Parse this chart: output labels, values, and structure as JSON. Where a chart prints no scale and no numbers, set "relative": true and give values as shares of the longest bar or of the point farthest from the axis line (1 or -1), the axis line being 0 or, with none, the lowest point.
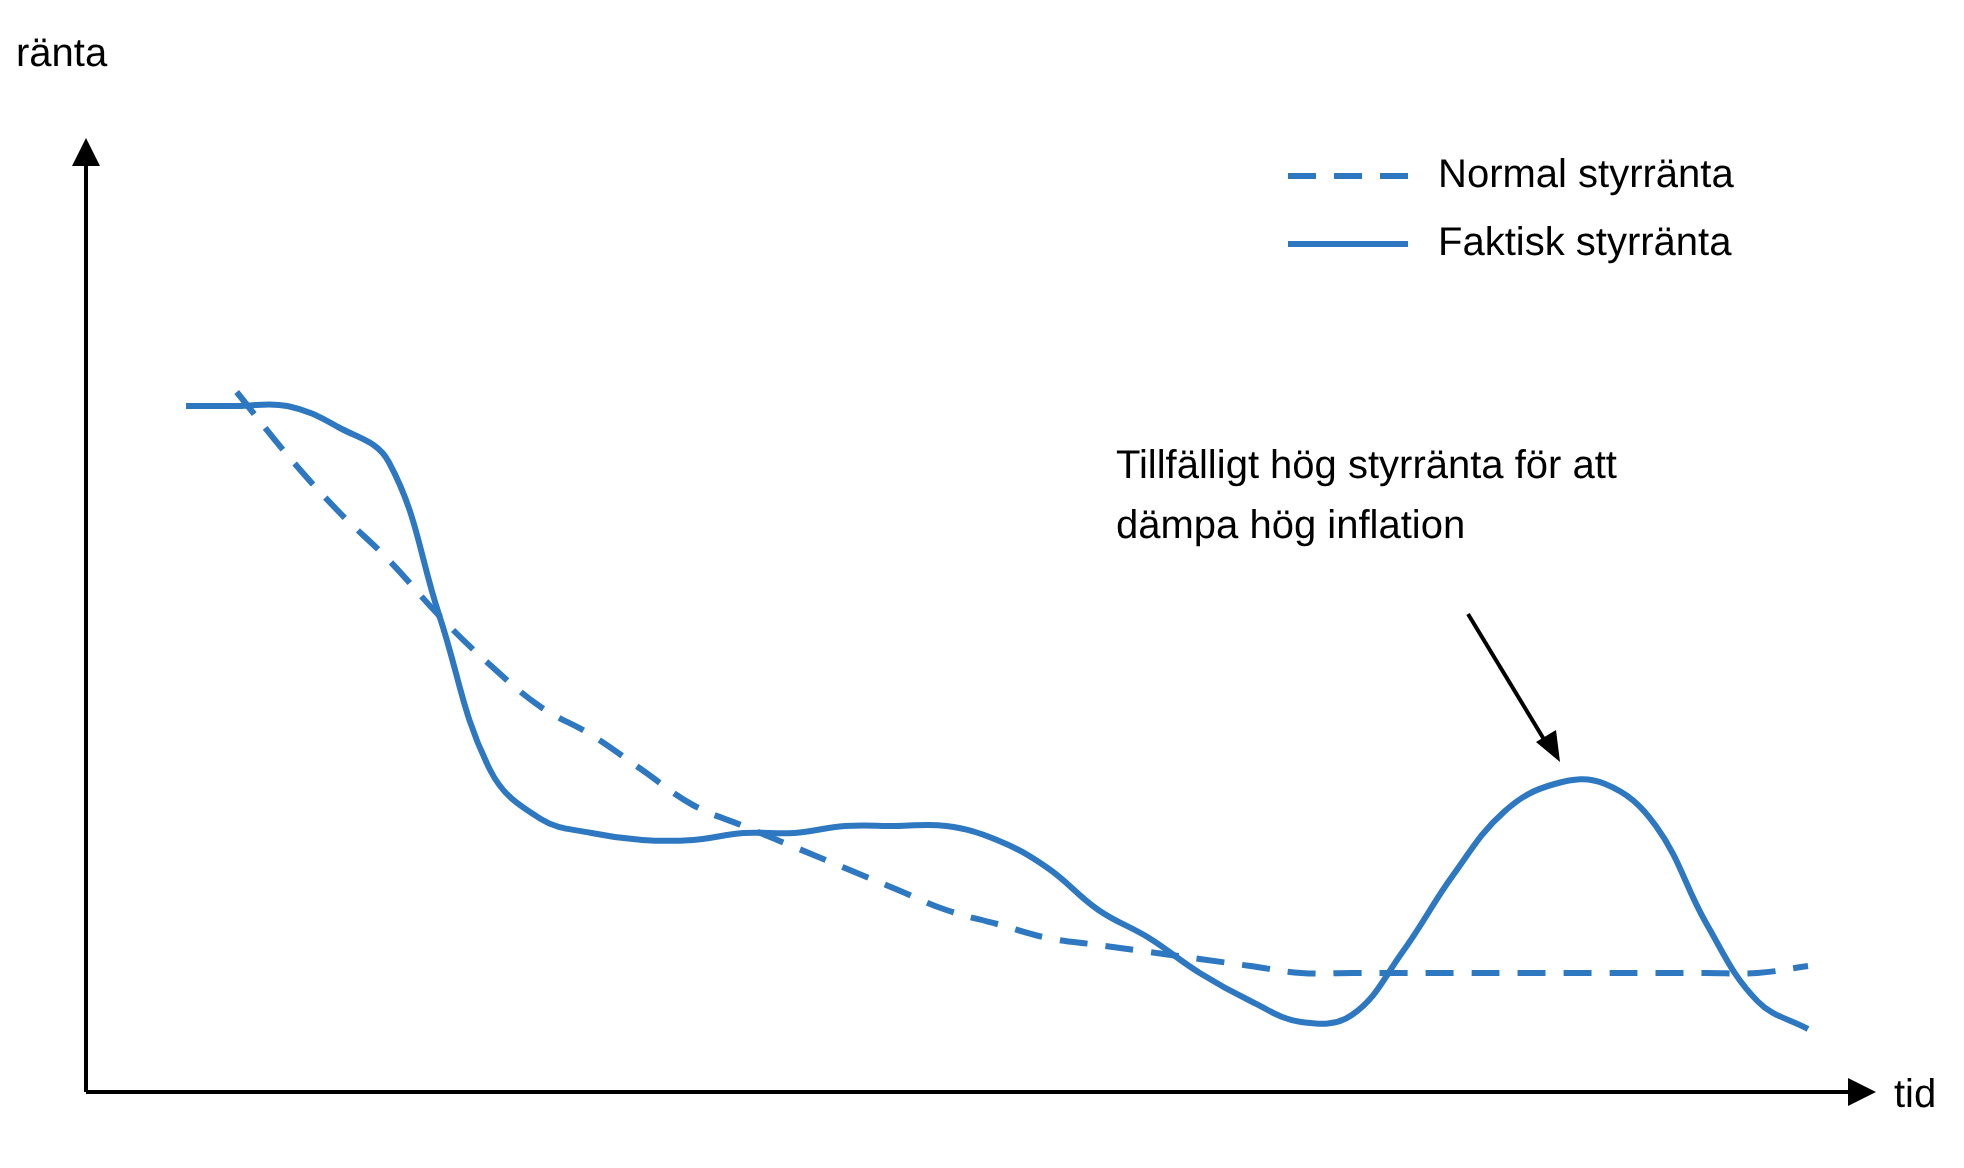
{
  "chart_data": {
    "type": "line",
    "relative": true,
    "xlabel": "tid",
    "legend": "top right",
    "marker": "none",
    "categories": [
      null,
      null,
      null,
      null,
      null,
      null,
      null,
      null,
      null,
      null,
      null,
      null,
      null,
      null,
      null,
      null,
      null,
      null,
      null,
      null,
      null,
      null,
      null,
      null,
      null,
      null,
      null,
      null,
      null,
      null,
      null,
      null,
      null
    ],
    "series": [
      {
        "name": "Normal styrränta",
        "color": "#2e78c2",
        "line_style": "dashed",
        "values": [
          null,
          1.0,
          0.91,
          0.83,
          0.76,
          0.68,
          0.61,
          0.55,
          0.51,
          0.46,
          0.41,
          0.38,
          0.35,
          0.32,
          0.29,
          0.26,
          0.24,
          0.22,
          0.21,
          0.2,
          0.19,
          0.18,
          0.17,
          0.17,
          0.17,
          0.17,
          0.17,
          0.17,
          0.17,
          0.17,
          0.17,
          0.17,
          0.18
        ]
      },
      {
        "name": "Faktisk styrränta",
        "color": "#2e78c2",
        "line_style": "solid",
        "values": [
          0.98,
          0.98,
          0.98,
          0.95,
          0.9,
          0.68,
          0.46,
          0.39,
          0.37,
          0.36,
          0.36,
          0.37,
          0.37,
          0.38,
          0.38,
          0.38,
          0.36,
          0.32,
          0.26,
          0.22,
          0.17,
          0.13,
          0.1,
          0.11,
          0.2,
          0.31,
          0.4,
          0.44,
          0.44,
          0.38,
          0.24,
          0.13,
          0.09
        ]
      }
    ],
    "annotations": [
      "ränta",
      "Tillfälligt hög styrränta för att dämpa hög inflation"
    ]
  }
}
